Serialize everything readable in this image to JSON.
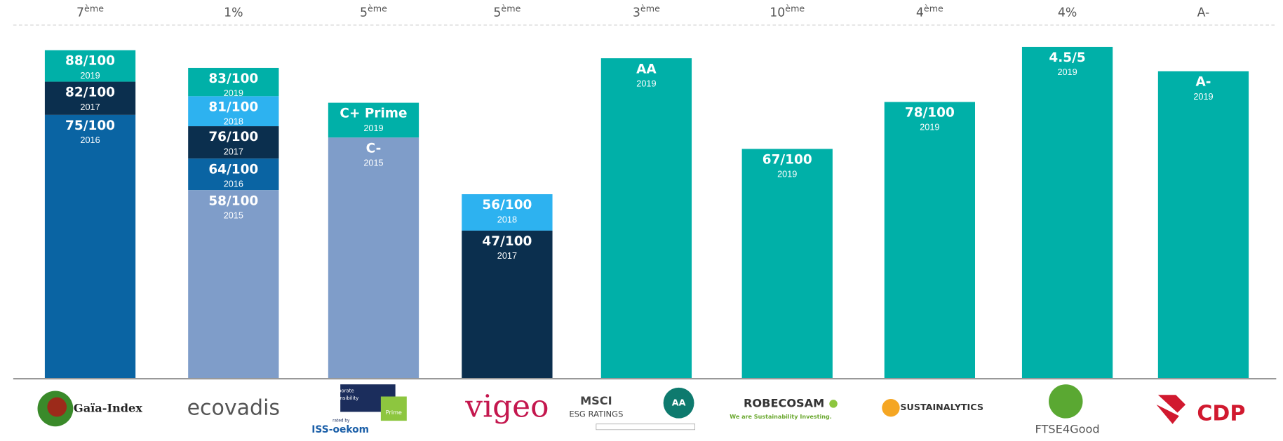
{
  "columns": [
    {
      "rank": {
        "main": "7",
        "sup": "ème"
      },
      "logo": [
        "Gaïa-Index"
      ],
      "segments": [
        {
          "label": "88/100",
          "year": "2019",
          "color": "#00b0a8"
        },
        {
          "label": "82/100",
          "year": "2017",
          "color": "#0b2f4e"
        },
        {
          "label": "75/100",
          "year": "2016",
          "color": "#0a64a3"
        }
      ]
    },
    {
      "rank": {
        "main": "1%"
      },
      "logo": [
        "ecovadis"
      ],
      "segments": [
        {
          "label": "83/100",
          "year": "2019",
          "color": "#00b0a8"
        },
        {
          "label": "81/100",
          "year": "2018",
          "color": "#2db2f0"
        },
        {
          "label": "76/100",
          "year": "2017",
          "color": "#0b2f4e"
        },
        {
          "label": "64/100",
          "year": "2016",
          "color": "#0a64a3"
        },
        {
          "label": "58/100",
          "year": "2015",
          "color": "#7f9dc9"
        }
      ]
    },
    {
      "rank": {
        "main": "5",
        "sup": "ème"
      },
      "logo": [
        "Corporate",
        "Responsibility",
        "Prime",
        "rated by",
        "ISS-oekom"
      ],
      "segments": [
        {
          "label": "C+ Prime",
          "year": "2019",
          "color": "#00b0a8"
        },
        {
          "label": "C-",
          "year": "2015",
          "color": "#7f9dc9"
        }
      ]
    },
    {
      "rank": {
        "main": "5",
        "sup": "ème"
      },
      "logo": [
        "vigeo"
      ],
      "segments": [
        {
          "label": "56/100",
          "year": "2018",
          "color": "#2db2f0"
        },
        {
          "label": "47/100",
          "year": "2017",
          "color": "#0b2f4e"
        }
      ]
    },
    {
      "rank": {
        "main": "3",
        "sup": "ème"
      },
      "logo": [
        "MSCI",
        "ESG RATINGS",
        "AA"
      ],
      "segments": [
        {
          "label": "AA",
          "year": "2019",
          "color": "#00b0a8"
        }
      ]
    },
    {
      "rank": {
        "main": "10",
        "sup": "ème"
      },
      "logo": [
        "ROBECOSAM",
        "We are Sustainability Investing."
      ],
      "segments": [
        {
          "label": "67/100",
          "year": "2019",
          "color": "#00b0a8"
        }
      ]
    },
    {
      "rank": {
        "main": "4",
        "sup": "ème"
      },
      "logo": [
        "SUSTAINALYTICS"
      ],
      "segments": [
        {
          "label": "78/100",
          "year": "2019",
          "color": "#00b0a8"
        }
      ]
    },
    {
      "rank": {
        "main": "4%"
      },
      "logo": [
        "FTSE4Good"
      ],
      "segments": [
        {
          "label": "4.5/5",
          "year": "2019",
          "color": "#00b0a8"
        }
      ]
    },
    {
      "rank": {
        "main": "A-"
      },
      "logo": [
        "CDP"
      ],
      "segments": [
        {
          "label": "A-",
          "year": "2019",
          "color": "#00b0a8"
        }
      ]
    }
  ]
}
